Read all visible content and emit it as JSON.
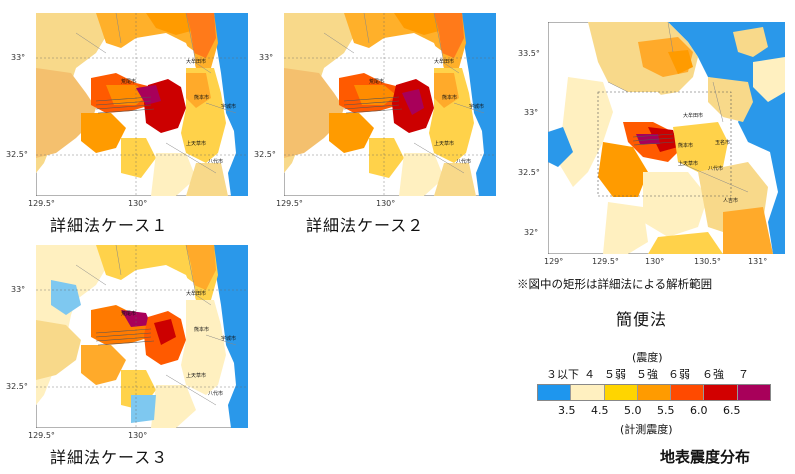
{
  "maps": [
    {
      "id": "case1",
      "caption": "詳細法ケース１",
      "yticks": [
        "33°",
        "32.5°"
      ],
      "xticks": [
        "129.5°",
        "130°"
      ],
      "city_labels": [
        "大牟田市",
        "熊本市",
        "八代市",
        "上天草市",
        "荒尾市",
        "宇城市"
      ]
    },
    {
      "id": "case2",
      "caption": "詳細法ケース２",
      "yticks": [
        "33°",
        "32.5°"
      ],
      "xticks": [
        "129.5°",
        "130°"
      ],
      "city_labels": [
        "大牟田市",
        "熊本市",
        "八代市",
        "上天草市",
        "荒尾市",
        "宇城市"
      ]
    },
    {
      "id": "case3",
      "caption": "詳細法ケース３",
      "yticks": [
        "33°",
        "32.5°"
      ],
      "xticks": [
        "129.5°",
        "130°"
      ],
      "city_labels": [
        "大牟田市",
        "熊本市",
        "八代市",
        "上天草市",
        "荒尾市",
        "宇城市"
      ]
    },
    {
      "id": "simple",
      "caption": "簡便法",
      "yticks": [
        "33.5°",
        "33°",
        "32.5°",
        "32°"
      ],
      "xticks": [
        "129°",
        "129.5°",
        "130°",
        "130.5°",
        "131°"
      ],
      "city_labels": [
        "大牟田市",
        "熊本市",
        "八代市",
        "上天草市",
        "玉名市",
        "人吉市"
      ]
    }
  ],
  "note": "※図中の矩形は詳細法による解析範囲",
  "figure_title": "地表震度分布",
  "legend": {
    "top_title": "(震度)",
    "top_labels": [
      "３以下",
      "４",
      "５弱",
      "５強",
      "６弱",
      "６強",
      "７"
    ],
    "bottom_labels": [
      "3.5",
      "4.5",
      "5.0",
      "5.5",
      "6.0",
      "6.5"
    ],
    "bottom_title": "(計測震度)",
    "colors": [
      "#1e96ee",
      "#fff0c0",
      "#ffd500",
      "#ff9b00",
      "#ff4a00",
      "#d20000",
      "#a8005a"
    ]
  }
}
